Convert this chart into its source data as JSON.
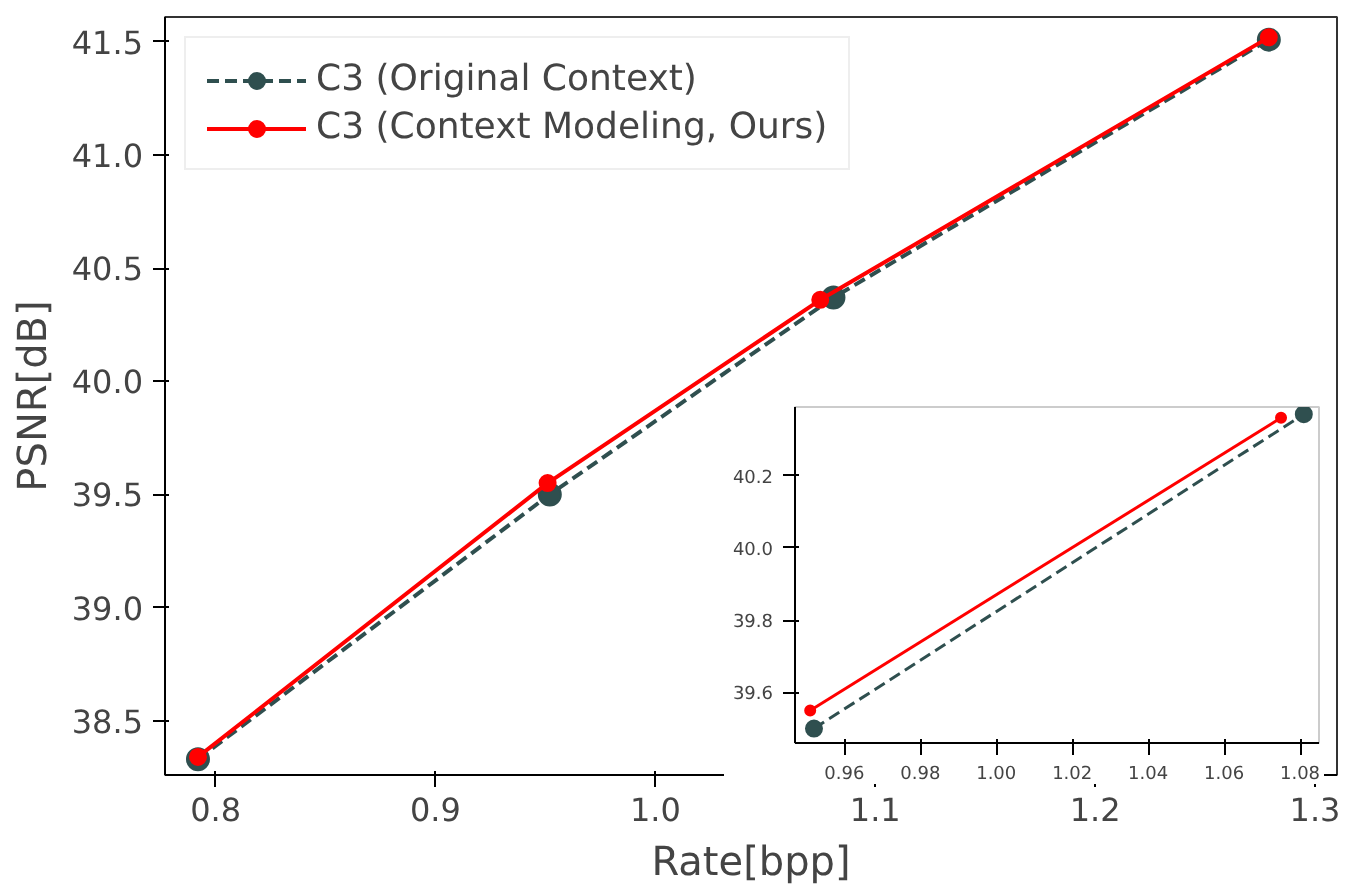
{
  "chart_data": [
    {
      "type": "line",
      "xlabel": "Rate[bpp]",
      "ylabel": "PSNR[dB]",
      "xlim": [
        0.777,
        1.31
      ],
      "ylim": [
        38.26,
        41.61
      ],
      "xticks": [
        0.8,
        0.9,
        {
          "value": 1.0,
          "label": "1.0"
        },
        1.1,
        1.2,
        1.3
      ],
      "yticks": [
        38.5,
        {
          "value": 39.0,
          "label": "39.0"
        },
        39.5,
        {
          "value": 40.0,
          "label": "40.0"
        },
        40.5,
        {
          "value": 41.0,
          "label": "41.0"
        },
        41.5
      ],
      "legend": "top left",
      "marker": "circle",
      "grid": false,
      "series": [
        {
          "name": "C3 (Original Context)",
          "color": "#2f4f4f",
          "line_style": "dashed",
          "x": [
            0.792,
            0.952,
            1.081,
            1.279
          ],
          "values": [
            38.33,
            39.5,
            40.37,
            41.51
          ]
        },
        {
          "name": "C3 (Context Modeling, Ours)",
          "color": "#ff0000",
          "line_style": "solid",
          "x": [
            0.792,
            0.951,
            1.075,
            1.279
          ],
          "values": [
            38.34,
            39.55,
            40.36,
            41.52
          ]
        }
      ]
    },
    {
      "type": "line",
      "xlim": [
        0.947,
        1.085
      ],
      "ylim": [
        39.46,
        40.39
      ],
      "xticks": [
        0.96,
        0.98,
        {
          "value": 1.0,
          "label": "1.00"
        },
        1.02,
        1.04,
        1.06,
        1.08
      ],
      "yticks": [
        39.6,
        39.8,
        {
          "value": 40.0,
          "label": "40.0"
        },
        40.2
      ],
      "marker": "circle",
      "grid": false,
      "series": [
        {
          "color": "#2f4f4f",
          "line_style": "dashed",
          "x": [
            0.952,
            1.081
          ],
          "values": [
            39.5,
            40.37
          ]
        },
        {
          "color": "#ff0000",
          "line_style": "solid",
          "x": [
            0.951,
            1.075
          ],
          "values": [
            39.55,
            40.36
          ]
        }
      ]
    }
  ]
}
